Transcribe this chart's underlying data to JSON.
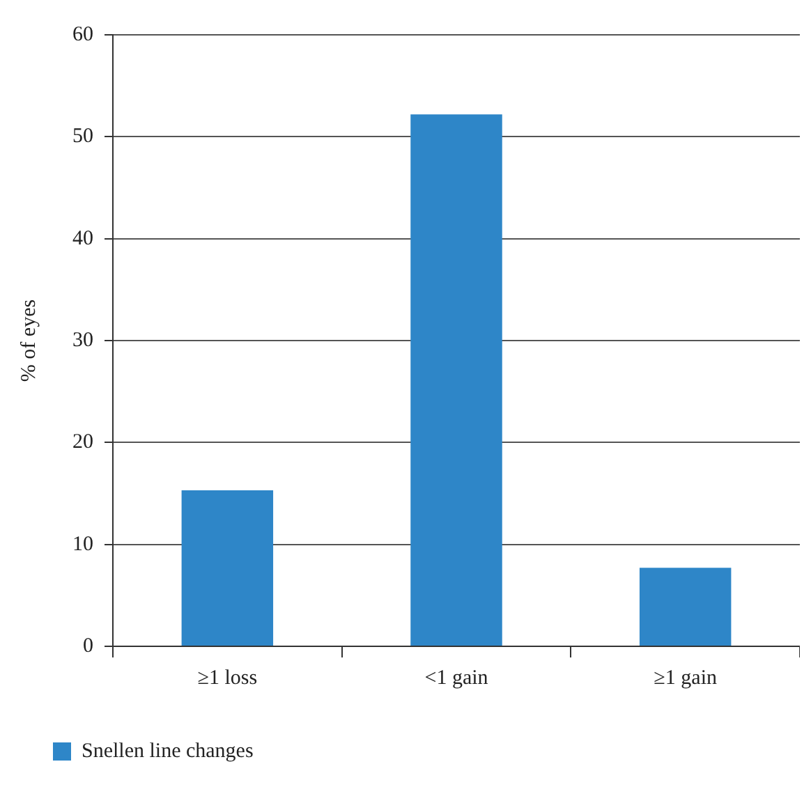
{
  "chart_data": {
    "type": "bar",
    "ylabel": "% of eyes",
    "categories": [
      "≥1 loss",
      "<1 gain",
      "≥1 gain"
    ],
    "series": [
      {
        "name": "Snellen line changes",
        "color": "#2e86c8",
        "values": [
          15.3,
          52.2,
          7.7
        ]
      }
    ],
    "ylim": [
      0,
      60
    ],
    "yticks": [
      0,
      10,
      20,
      30,
      40,
      50,
      60
    ],
    "grid": "y",
    "legend": "bottom left"
  }
}
